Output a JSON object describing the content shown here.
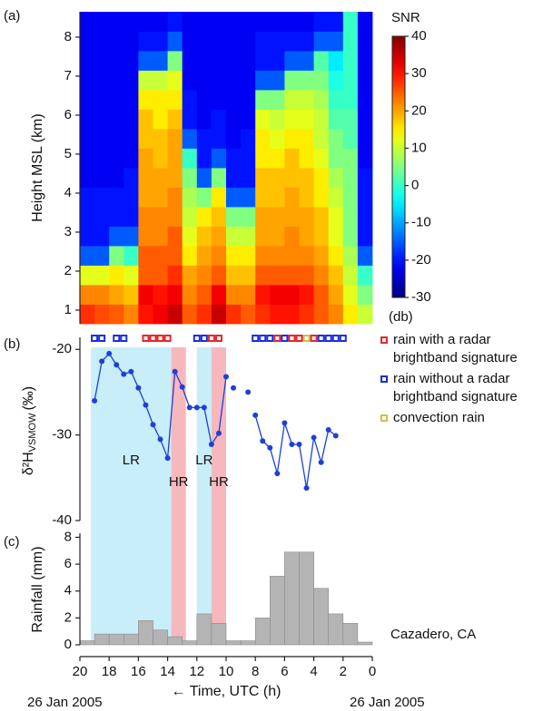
{
  "chart_data": [
    {
      "type": "heatmap",
      "panel_label": "(a)",
      "ylabel": "Height MSL (km)",
      "x_bins": [
        20,
        19,
        18,
        17,
        16,
        15,
        14,
        13,
        12,
        11,
        10,
        9,
        8,
        7,
        6,
        5,
        4,
        3,
        2,
        1,
        0
      ],
      "y_bins": [
        0.65,
        1.15,
        1.65,
        2.15,
        2.65,
        3.15,
        3.65,
        4.15,
        4.65,
        5.15,
        5.65,
        6.15,
        6.65,
        7.15,
        7.65,
        8.15,
        8.65
      ],
      "z": [
        [
          28,
          22,
          12,
          -15,
          -20,
          -20,
          -20,
          -22,
          -22,
          -22,
          -22,
          -22,
          -22,
          -22,
          -22,
          -22
        ],
        [
          26,
          22,
          12,
          -15,
          -20,
          -20,
          -20,
          -22,
          -22,
          -22,
          -22,
          -22,
          -22,
          -22,
          -22,
          -22
        ],
        [
          25,
          20,
          15,
          5,
          -15,
          -20,
          -20,
          -22,
          -22,
          -22,
          -22,
          -22,
          -22,
          -22,
          -22,
          -22
        ],
        [
          22,
          18,
          12,
          0,
          -15,
          -20,
          -20,
          -20,
          -22,
          -22,
          -22,
          -22,
          -22,
          -22,
          -22,
          -22
        ],
        [
          30,
          32,
          25,
          25,
          22,
          22,
          20,
          20,
          20,
          18,
          18,
          15,
          10,
          -15,
          -20,
          -22
        ],
        [
          32,
          30,
          25,
          25,
          22,
          22,
          20,
          20,
          18,
          18,
          15,
          15,
          10,
          -15,
          -20,
          -22
        ],
        [
          35,
          32,
          28,
          25,
          25,
          22,
          22,
          20,
          20,
          20,
          18,
          15,
          12,
          5,
          -15,
          -20
        ],
        [
          25,
          22,
          20,
          15,
          12,
          10,
          8,
          5,
          0,
          -15,
          -20,
          -20,
          -22,
          -22,
          -22,
          -22
        ],
        [
          28,
          25,
          22,
          20,
          18,
          15,
          5,
          -15,
          -20,
          -20,
          -22,
          -22,
          -22,
          -22,
          -22,
          -22
        ],
        [
          35,
          32,
          25,
          22,
          20,
          18,
          15,
          5,
          -15,
          -20,
          -20,
          -22,
          -22,
          -22,
          -22,
          -22
        ],
        [
          28,
          22,
          18,
          15,
          10,
          5,
          -15,
          -20,
          -20,
          -22,
          -22,
          -22,
          -22,
          -22,
          -22,
          -22
        ],
        [
          25,
          22,
          18,
          15,
          10,
          5,
          -15,
          -20,
          -20,
          -20,
          -22,
          -22,
          -22,
          -22,
          -22,
          -22
        ],
        [
          28,
          30,
          25,
          22,
          20,
          20,
          18,
          18,
          15,
          15,
          12,
          5,
          -15,
          -20,
          -20,
          -22
        ],
        [
          30,
          32,
          25,
          22,
          20,
          20,
          18,
          18,
          15,
          12,
          10,
          5,
          -15,
          -20,
          -20,
          -22
        ],
        [
          30,
          32,
          25,
          22,
          22,
          20,
          20,
          18,
          18,
          15,
          12,
          10,
          5,
          -15,
          -20,
          -22
        ],
        [
          28,
          30,
          25,
          22,
          20,
          20,
          18,
          18,
          15,
          15,
          12,
          10,
          5,
          -15,
          -20,
          -22
        ],
        [
          25,
          25,
          22,
          20,
          18,
          18,
          15,
          15,
          12,
          10,
          10,
          8,
          5,
          2,
          -15,
          -20
        ],
        [
          22,
          20,
          18,
          15,
          12,
          12,
          10,
          8,
          5,
          5,
          2,
          0,
          -2,
          -5,
          -15,
          -20
        ],
        [
          15,
          12,
          10,
          8,
          5,
          5,
          5,
          5,
          5,
          2,
          2,
          0,
          0,
          0,
          0,
          0
        ],
        [
          10,
          5,
          0,
          -15,
          -20,
          -20,
          -20,
          -20,
          -22,
          -22,
          -22,
          -22,
          -22,
          -22,
          -22,
          -22
        ]
      ],
      "xlim": [
        20,
        0
      ],
      "ylim": [
        0.65,
        8.65
      ],
      "yticks": [
        1,
        2,
        3,
        4,
        5,
        6,
        7,
        8
      ],
      "colorbar": {
        "title": "SNR",
        "unit": "(db)",
        "colormap": "jet",
        "zlim": [
          -30,
          40
        ],
        "ticks": [
          -30,
          -20,
          -10,
          0,
          10,
          20,
          30,
          40
        ]
      }
    },
    {
      "type": "line",
      "panel_label": "(b)",
      "ylabel": "δ²H",
      "ylabel_sub": "VSMOW",
      "ylabel_unit": "(‰)",
      "x": [
        19,
        18.5,
        18,
        17.5,
        17,
        16.5,
        16,
        15.5,
        15,
        14.5,
        14,
        13.5,
        13,
        12.5,
        12,
        11.5,
        11,
        10.5,
        10,
        9.75,
        9.5,
        9,
        8.5,
        8.25,
        8,
        7.5,
        7,
        6.5,
        6,
        5.5,
        5,
        4.5,
        4,
        3.5,
        3,
        2.5
      ],
      "values": [
        -26.0,
        -21.4,
        -20.5,
        -21.8,
        -22.9,
        -22.6,
        -24.5,
        -26.5,
        -28.8,
        -30.5,
        -32.7,
        -22.6,
        -24.4,
        -26.8,
        -26.8,
        -26.8,
        -31.1,
        -29.8,
        -23.2,
        null,
        -24.5,
        null,
        -25.0,
        null,
        -27.7,
        -30.7,
        -31.5,
        -34.5,
        -28.6,
        -31.1,
        -31.1,
        -36.2,
        -30.3,
        -33.2,
        -29.4,
        -30.1
      ],
      "color": "#1f3fd8",
      "xlim": [
        20,
        0
      ],
      "ylim": [
        -40,
        -18.6
      ],
      "yticks": [
        -20,
        -30,
        -40
      ],
      "rain_types": {
        "x": [
          19,
          18.5,
          17.5,
          17,
          15.5,
          15,
          14.5,
          14,
          12,
          11.5,
          11,
          10.5,
          8,
          7.5,
          7,
          6.5,
          6,
          5.5,
          5,
          4.5,
          4,
          3.5,
          3,
          2.5,
          2
        ],
        "type": [
          1,
          1,
          1,
          1,
          0,
          0,
          0,
          0,
          1,
          1,
          0,
          0,
          1,
          1,
          1,
          0,
          1,
          0,
          0,
          2,
          0,
          1,
          1,
          1,
          1
        ]
      },
      "legend": [
        {
          "color": "#e8262a",
          "lines": [
            "rain with a radar",
            "brightband signature"
          ]
        },
        {
          "color": "#1a2ee0",
          "lines": [
            "rain without a radar",
            "brightband signature"
          ]
        },
        {
          "color": "#c9c24a",
          "lines": [
            "convection rain"
          ]
        }
      ],
      "regions": [
        {
          "label": "LR",
          "xlim": [
            19.25,
            13.75
          ],
          "color": "#c8eefa"
        },
        {
          "label": "HR",
          "xlim": [
            13.75,
            12.75
          ],
          "color": "#f7b8bd"
        },
        {
          "label": "LR",
          "xlim": [
            12,
            11
          ],
          "color": "#c8eefa"
        },
        {
          "label": "HR",
          "xlim": [
            11,
            10
          ],
          "color": "#f7b8bd"
        }
      ]
    },
    {
      "type": "histogram",
      "panel_label": "(c)",
      "ylabel": "Rainfall (mm)",
      "xlabel": "← Time, UTC (h)",
      "bins": [
        20,
        19,
        18,
        17,
        16,
        15,
        14,
        13,
        12,
        11,
        10,
        9,
        8,
        7,
        6,
        5,
        4,
        3,
        2,
        1,
        0
      ],
      "values": [
        0.3,
        0.8,
        0.8,
        0.8,
        1.8,
        1.1,
        0.6,
        0.3,
        2.3,
        1.6,
        0.3,
        0.3,
        2.0,
        5.1,
        6.9,
        6.9,
        4.2,
        2.3,
        1.6,
        0.2
      ],
      "color": "#b4b4b4",
      "xlim": [
        20,
        0
      ],
      "xticks": [
        20,
        18,
        16,
        14,
        12,
        10,
        8,
        6,
        4,
        2,
        0
      ],
      "ylim": [
        0,
        8.3
      ],
      "yticks": [
        0,
        2,
        4,
        6,
        8
      ],
      "annotation": "Cazadero, CA",
      "date_left": "26 Jan 2005",
      "date_right": "26 Jan 2005"
    }
  ]
}
